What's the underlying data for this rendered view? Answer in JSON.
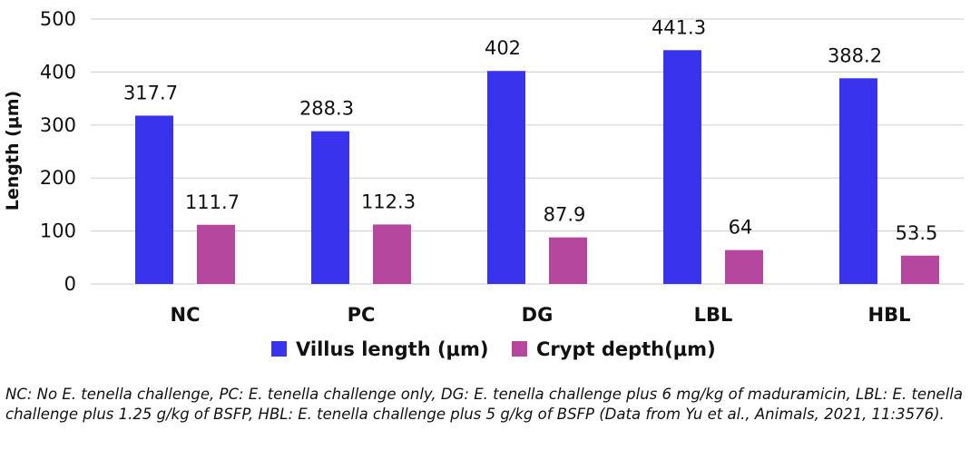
{
  "chart_data": {
    "type": "bar",
    "categories": [
      "NC",
      "PC",
      "DG",
      "LBL",
      "HBL"
    ],
    "series": [
      {
        "name": "Villus length (μm)",
        "values": [
          317.7,
          288.3,
          402,
          441.3,
          388.2
        ],
        "color": "#3a33ee"
      },
      {
        "name": "Crypt depth(μm)",
        "values": [
          111.7,
          112.3,
          87.9,
          64,
          53.5
        ],
        "color": "#b6479f"
      }
    ],
    "value_labels": [
      [
        "317.7",
        "288.3",
        "402",
        "441.3",
        "388.2"
      ],
      [
        "111.7",
        "112.3",
        "87.9",
        "64",
        "53.5"
      ]
    ],
    "title": "",
    "xlabel": "",
    "ylabel": "Length (μm)",
    "ylim": [
      0,
      500
    ],
    "yticks": [
      0,
      100,
      200,
      300,
      400,
      500
    ],
    "ytick_labels": [
      "0",
      "100",
      "200",
      "300",
      "400",
      "500"
    ],
    "grid": true,
    "legend": "bottom"
  },
  "caption": "NC: No E. tenella challenge, PC: E. tenella challenge only, DG: E. tenella challenge plus 6 mg/kg of maduramicin, LBL: E. tenella challenge plus 1.25 g/kg of BSFP, HBL: E. tenella challenge plus 5 g/kg of BSFP (Data from Yu et al., Animals, 2021, 11:3576)."
}
